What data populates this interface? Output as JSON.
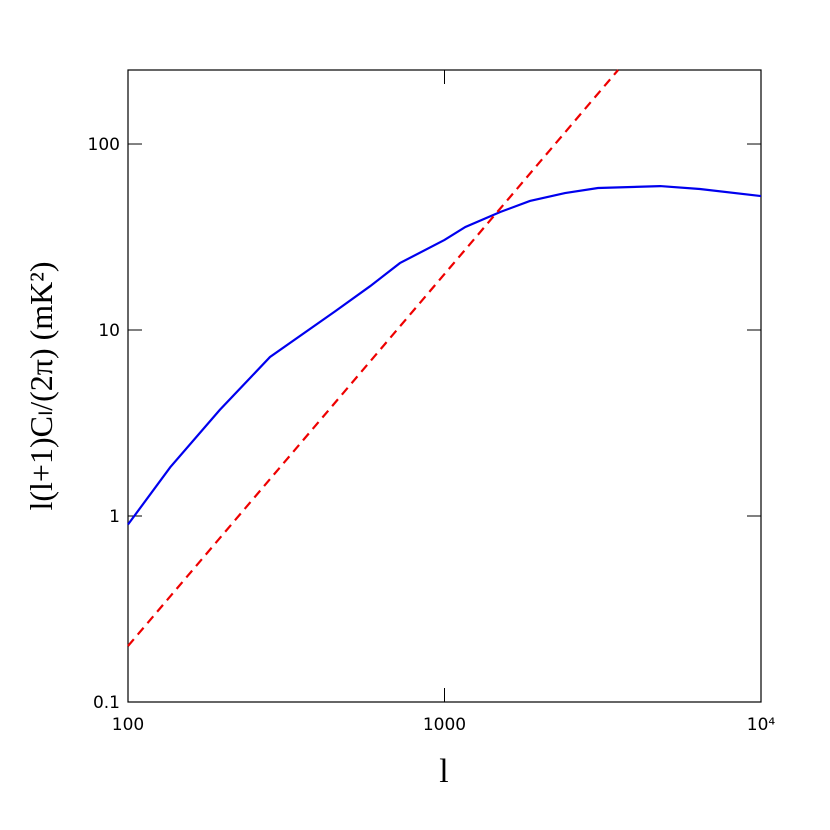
{
  "chart_data": {
    "type": "line",
    "xlabel": "l",
    "ylabel": "l(l+1)Cₗ/(2π)  (mK²)",
    "xlog": true,
    "ylog": true,
    "xlim": [
      100,
      10000
    ],
    "ylim": [
      0.1,
      250
    ],
    "xticks": [
      100,
      1000,
      {
        "value": 10000,
        "label": "10⁴"
      }
    ],
    "yticks": [
      0.1,
      1,
      10,
      100
    ],
    "series": [
      {
        "color": "#0000ee",
        "dash": false,
        "x": [
          100,
          136,
          195,
          281,
          451,
          582,
          723,
          1000,
          1164,
          1500,
          1862,
          2403,
          3055,
          4800,
          6410,
          10000
        ],
        "values": [
          0.9,
          1.83,
          3.72,
          7.16,
          12.6,
          17.2,
          22.9,
          30.5,
          35.8,
          43.1,
          49.4,
          54.5,
          58,
          59.4,
          57.3,
          52.5
        ]
      },
      {
        "color": "#ee0000",
        "dash": true,
        "x": [
          100,
          3536
        ],
        "values": [
          0.2,
          250
        ]
      }
    ]
  }
}
